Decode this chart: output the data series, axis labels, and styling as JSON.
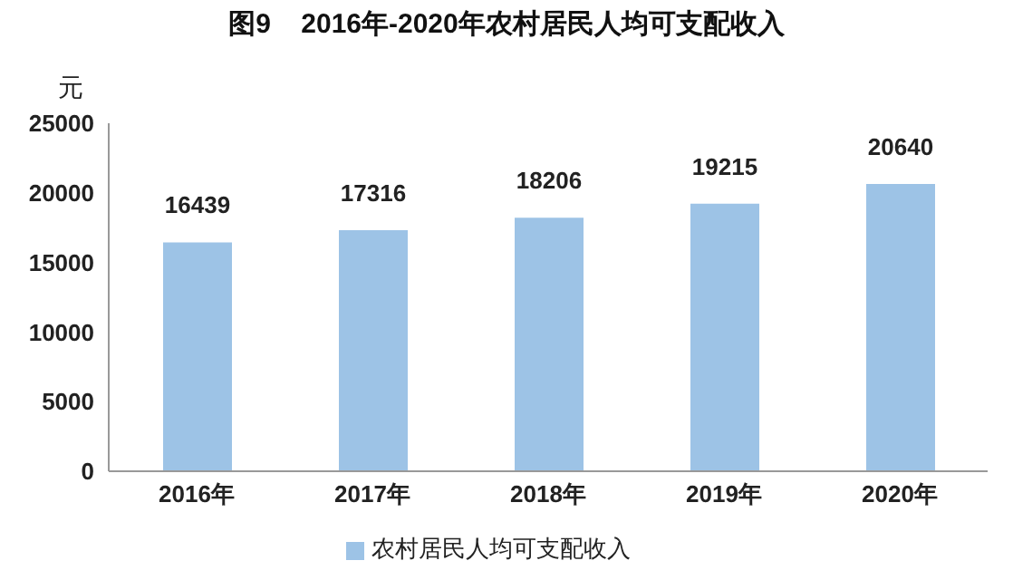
{
  "chart_data": {
    "type": "bar",
    "title": "图9    2016年-2020年农村居民人均可支配收入",
    "ylabel": "元",
    "categories": [
      "2016年",
      "2017年",
      "2018年",
      "2019年",
      "2020年"
    ],
    "series": [
      {
        "name": "农村居民人均可支配收入",
        "color": "#9dc3e6",
        "values": [
          16439,
          17316,
          18206,
          19215,
          20640
        ]
      }
    ],
    "ylim": [
      0,
      25000
    ],
    "yticks": [
      0,
      5000,
      10000,
      15000,
      20000,
      25000
    ],
    "grid": false,
    "legend": "bottom",
    "data_labels": true
  }
}
